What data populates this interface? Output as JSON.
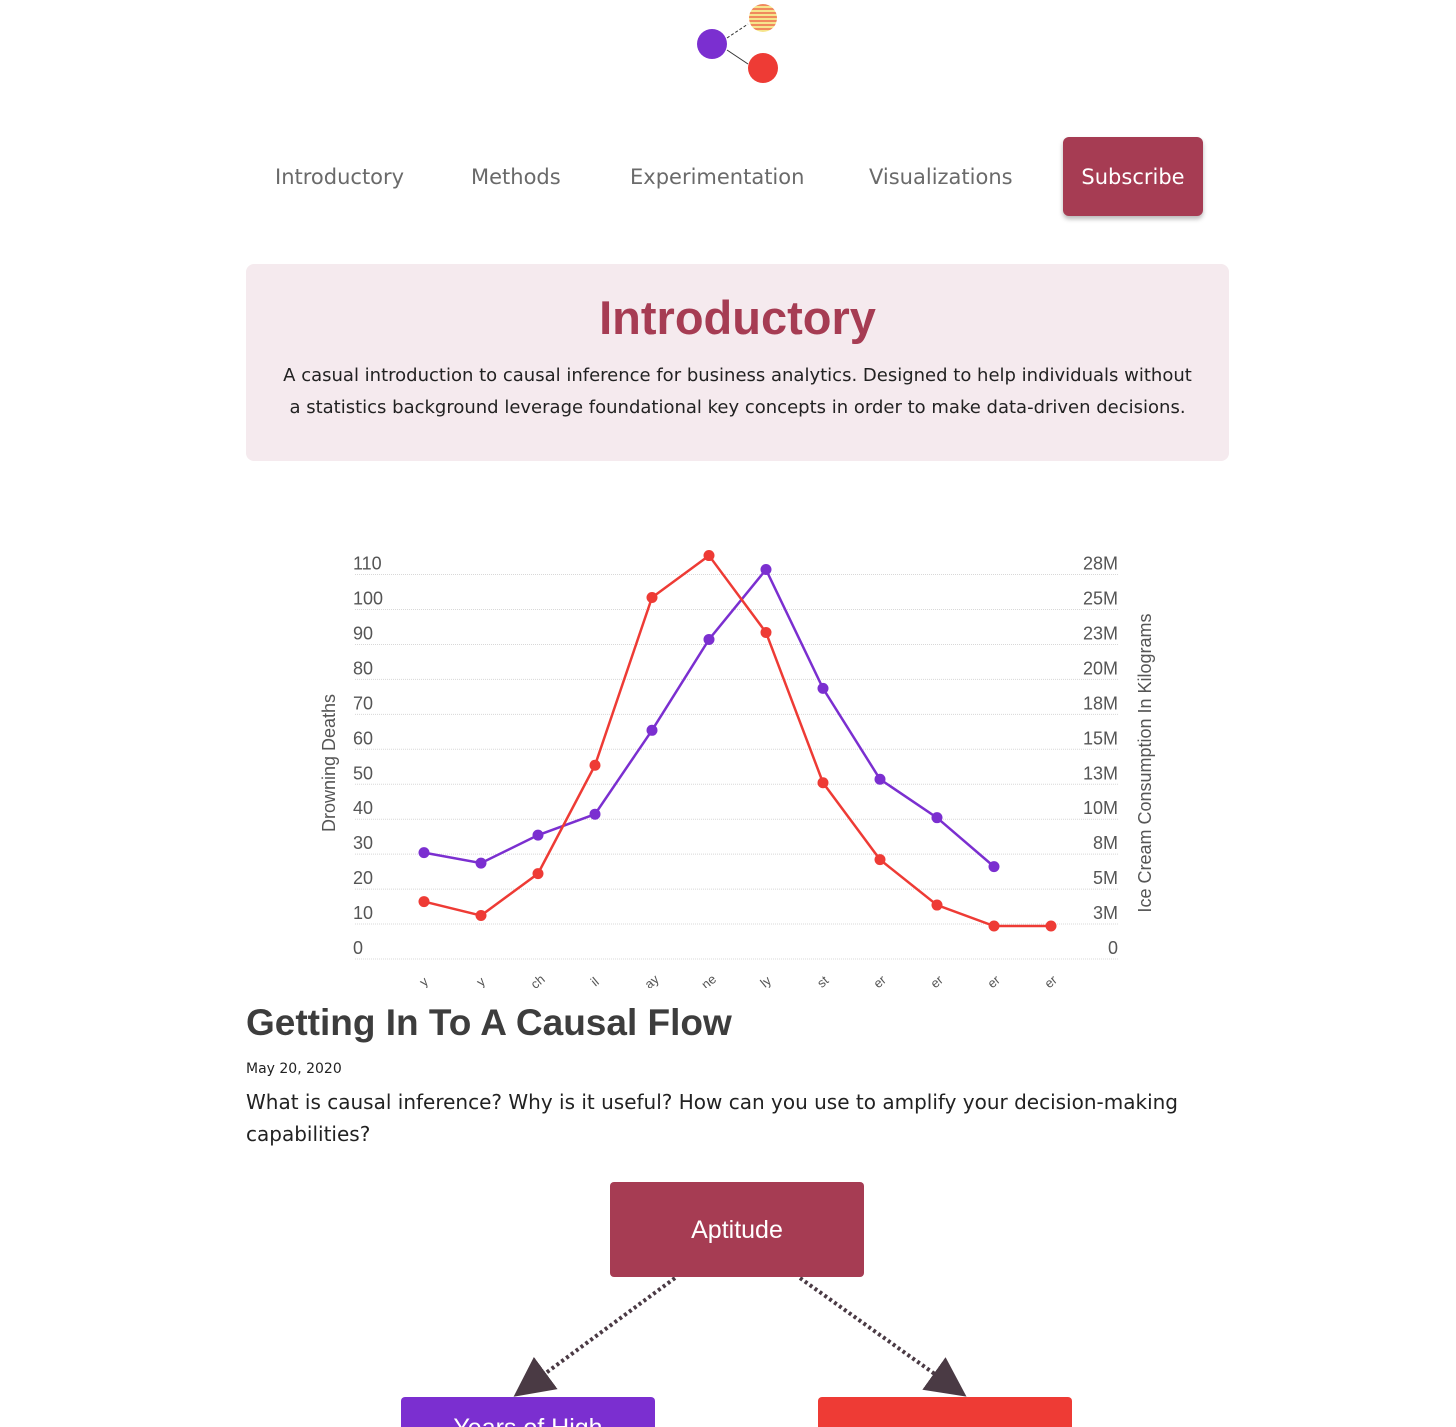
{
  "nav": {
    "items": [
      "Introductory",
      "Methods",
      "Experimentation",
      "Visualizations"
    ],
    "subscribe_label": "Subscribe"
  },
  "hero": {
    "title": "Introductory",
    "description": "A casual introduction to causal inference for business analytics. Designed to help individuals without a statistics background leverage foundational key concepts in order to make data-driven decisions."
  },
  "chart_data": {
    "type": "line",
    "ylabel": "Drowning Deaths",
    "y2label": "Ice Cream Consumption In Kilograms",
    "left_ticks": [
      "0",
      "10",
      "20",
      "30",
      "40",
      "50",
      "60",
      "70",
      "80",
      "90",
      "100",
      "110"
    ],
    "right_ticks": [
      "0",
      "3M",
      "5M",
      "8M",
      "10M",
      "13M",
      "15M",
      "18M",
      "20M",
      "23M",
      "25M",
      "28M"
    ],
    "ylim": [
      0,
      110
    ],
    "x_tick_labels": [
      "y",
      "y",
      "ch",
      "il",
      "ay",
      "ne",
      "ly",
      "st",
      "er",
      "er",
      "er",
      "er"
    ],
    "grid": true,
    "series": [
      {
        "color": "#7b2fd0",
        "values": [
          27,
          24,
          32,
          38,
          62,
          88,
          108,
          74,
          48,
          37,
          23,
          null
        ]
      },
      {
        "color": "#ee3b35",
        "values": [
          13,
          9,
          21,
          52,
          100,
          112,
          90,
          47,
          25,
          12,
          6,
          6
        ]
      }
    ]
  },
  "post": {
    "title": "Getting In To A Causal Flow",
    "date": "May 20, 2020",
    "summary": "What is causal inference? Why is it useful? How can you use to amplify your decision-making capabilities?"
  },
  "diagram": {
    "top_node": "Aptitude",
    "left_node": "Years of High",
    "right_node": "",
    "colors": {
      "top": "#a63c53",
      "left": "#7b2fd0",
      "right": "#ee3b35"
    }
  },
  "colors": {
    "brand": "#a63c53",
    "hero_bg": "#f5eaee"
  }
}
